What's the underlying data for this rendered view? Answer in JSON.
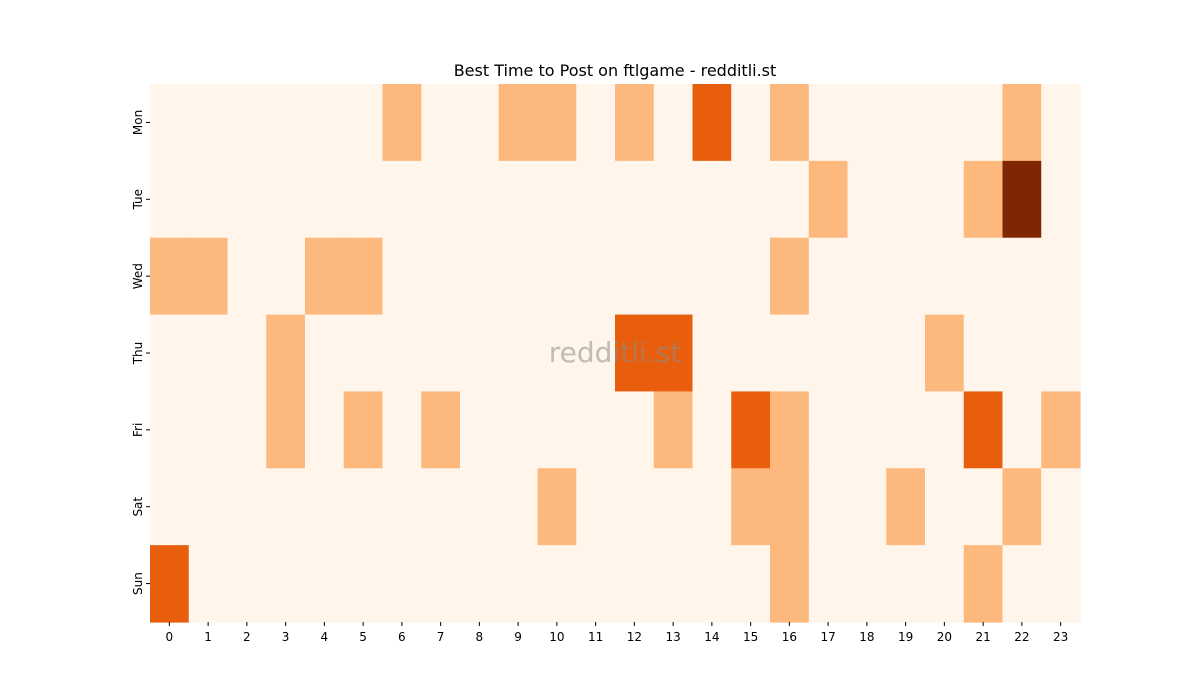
{
  "chart_data": {
    "type": "heatmap",
    "title": "Best Time to Post on ftlgame - redditli.st",
    "watermark": "redditli.st",
    "x": [
      "0",
      "1",
      "2",
      "3",
      "4",
      "5",
      "6",
      "7",
      "8",
      "9",
      "10",
      "11",
      "12",
      "13",
      "14",
      "15",
      "16",
      "17",
      "18",
      "19",
      "20",
      "21",
      "22",
      "23"
    ],
    "y": [
      "Mon",
      "Tue",
      "Wed",
      "Thu",
      "Fri",
      "Sat",
      "Sun"
    ],
    "values": [
      [
        0,
        0,
        0,
        0,
        0,
        0,
        1,
        0,
        0,
        1,
        1,
        0,
        1,
        0,
        2,
        0,
        1,
        0,
        0,
        0,
        0,
        0,
        1,
        0
      ],
      [
        0,
        0,
        0,
        0,
        0,
        0,
        0,
        0,
        0,
        0,
        0,
        0,
        0,
        0,
        0,
        0,
        0,
        1,
        0,
        0,
        0,
        1,
        3,
        0
      ],
      [
        1,
        1,
        0,
        0,
        1,
        1,
        0,
        0,
        0,
        0,
        0,
        0,
        0,
        0,
        0,
        0,
        1,
        0,
        0,
        0,
        0,
        0,
        0,
        0
      ],
      [
        0,
        0,
        0,
        1,
        0,
        0,
        0,
        0,
        0,
        0,
        0,
        0,
        2,
        2,
        0,
        0,
        0,
        0,
        0,
        0,
        1,
        0,
        0,
        0
      ],
      [
        0,
        0,
        0,
        1,
        0,
        1,
        0,
        1,
        0,
        0,
        0,
        0,
        0,
        1,
        0,
        2,
        1,
        0,
        0,
        0,
        0,
        2,
        0,
        1
      ],
      [
        0,
        0,
        0,
        0,
        0,
        0,
        0,
        0,
        0,
        0,
        1,
        0,
        0,
        0,
        0,
        1,
        1,
        0,
        0,
        1,
        0,
        0,
        1,
        0
      ],
      [
        2,
        0,
        0,
        0,
        0,
        0,
        0,
        0,
        0,
        0,
        0,
        0,
        0,
        0,
        0,
        0,
        1,
        0,
        0,
        0,
        0,
        1,
        0,
        0
      ]
    ],
    "colormap": "Oranges",
    "level_colors": [
      "#fff5eb",
      "#fdb97d",
      "#e95e0d",
      "#7f2704"
    ],
    "vmin": 0,
    "vmax": 3,
    "grid": false
  }
}
